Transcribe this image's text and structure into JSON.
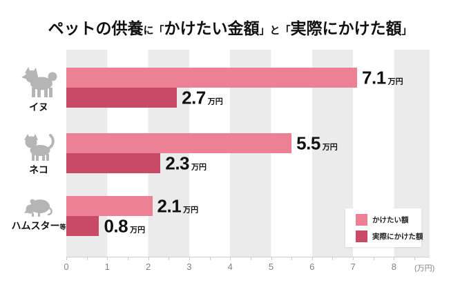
{
  "title": {
    "full": "ペットの供養に「かけたい金額」と「実際にかけた額」",
    "segments": [
      {
        "text": "ペットの供養",
        "emphasis": "large"
      },
      {
        "text": "に",
        "emphasis": "small"
      },
      {
        "text": "「",
        "emphasis": "small"
      },
      {
        "text": "かけたい金額",
        "emphasis": "large"
      },
      {
        "text": "」と「",
        "emphasis": "small"
      },
      {
        "text": "実際にかけた額",
        "emphasis": "large"
      },
      {
        "text": "」",
        "emphasis": "small"
      }
    ]
  },
  "chart_data": {
    "type": "bar",
    "orientation": "horizontal",
    "title": "ペットの供養に「かけたい金額」と「実際にかけた額」",
    "categories": [
      "イヌ",
      "ネコ",
      "ハムスター等"
    ],
    "series": [
      {
        "name": "かけたい額",
        "color": "#ec8095",
        "values": [
          7.1,
          5.5,
          2.1
        ]
      },
      {
        "name": "実際にかけた額",
        "color": "#c94a67",
        "values": [
          2.7,
          2.3,
          0.8
        ]
      }
    ],
    "value_suffix": "万円",
    "xlim": [
      0,
      8.9
    ],
    "x_ticks": [
      0,
      1,
      2,
      3,
      4,
      5,
      6,
      7,
      8
    ],
    "minor_tick_step": 0.5,
    "x_axis_unit_label": "(万円)",
    "grid": "alternating-vertical-bands",
    "legend_position": "bottom-right"
  },
  "category_labels": [
    {
      "main": "イヌ",
      "suffix": ""
    },
    {
      "main": "ネコ",
      "suffix": ""
    },
    {
      "main": "ハムスター",
      "suffix": "等"
    }
  ],
  "legend": {
    "items": [
      {
        "label": "かけたい額",
        "color": "#ec8095"
      },
      {
        "label": "実際にかけた額",
        "color": "#c94a67"
      }
    ]
  },
  "colors": {
    "band_gray": "#ebebeb",
    "icon_gray": "#b5b5b5",
    "axis_line": "#cccccc",
    "axis_text": "#808080",
    "text": "#111111"
  }
}
